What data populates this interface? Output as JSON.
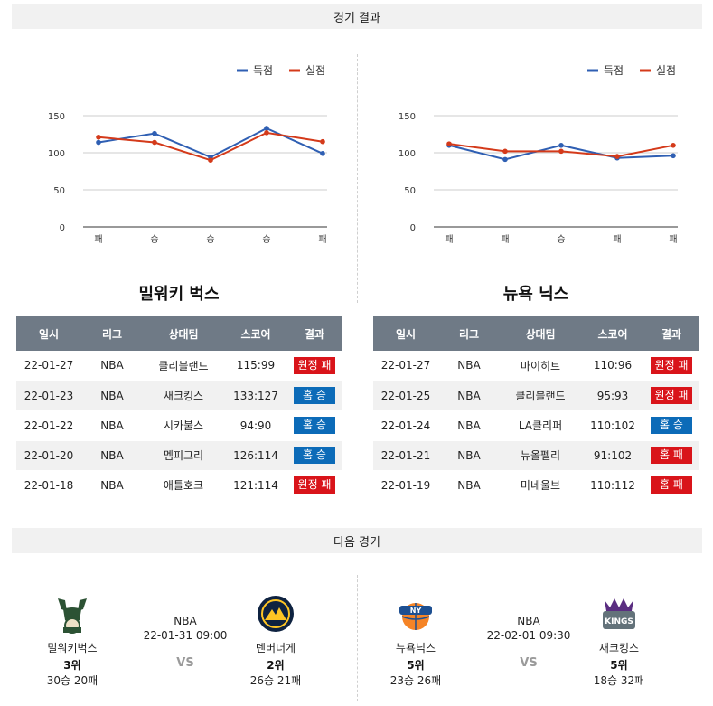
{
  "sections": {
    "results_title": "경기 결과",
    "next_title": "다음 경기"
  },
  "colors": {
    "scored": "#2f5fb3",
    "allowed": "#d43a1a",
    "loss": "#d9141a",
    "win": "#0c6bb8",
    "header": "#6f7a86"
  },
  "table_headers": [
    "일시",
    "리그",
    "상대팀",
    "스코어",
    "결과"
  ],
  "teams": [
    {
      "name": "밀워키 벅스",
      "games": [
        {
          "date": "22-01-27",
          "league": "NBA",
          "opponent": "클리블랜드",
          "score": "115:99",
          "result": "원정 패",
          "kind": "loss"
        },
        {
          "date": "22-01-23",
          "league": "NBA",
          "opponent": "새크킹스",
          "score": "133:127",
          "result": "홈 승",
          "kind": "win"
        },
        {
          "date": "22-01-22",
          "league": "NBA",
          "opponent": "시카불스",
          "score": "94:90",
          "result": "홈 승",
          "kind": "win"
        },
        {
          "date": "22-01-20",
          "league": "NBA",
          "opponent": "멤피그리",
          "score": "126:114",
          "result": "홈 승",
          "kind": "win"
        },
        {
          "date": "22-01-18",
          "league": "NBA",
          "opponent": "애틀호크",
          "score": "121:114",
          "result": "원정 패",
          "kind": "loss"
        }
      ]
    },
    {
      "name": "뉴욕 닉스",
      "games": [
        {
          "date": "22-01-27",
          "league": "NBA",
          "opponent": "마이히트",
          "score": "110:96",
          "result": "원정 패",
          "kind": "loss"
        },
        {
          "date": "22-01-25",
          "league": "NBA",
          "opponent": "클리블랜드",
          "score": "95:93",
          "result": "원정 패",
          "kind": "loss"
        },
        {
          "date": "22-01-24",
          "league": "NBA",
          "opponent": "LA클리퍼",
          "score": "110:102",
          "result": "홈 승",
          "kind": "win"
        },
        {
          "date": "22-01-21",
          "league": "NBA",
          "opponent": "뉴올펠리",
          "score": "91:102",
          "result": "홈 패",
          "kind": "loss"
        },
        {
          "date": "22-01-19",
          "league": "NBA",
          "opponent": "미네울브",
          "score": "110:112",
          "result": "홈 패",
          "kind": "loss"
        }
      ]
    }
  ],
  "chart_data": [
    {
      "type": "line",
      "categories": [
        "패",
        "승",
        "승",
        "승",
        "패"
      ],
      "ylim": [
        0,
        150
      ],
      "yticks": [
        0,
        50,
        100,
        150
      ],
      "grid": true,
      "legend_position": "top-right",
      "series": [
        {
          "name": "득점",
          "values": [
            114,
            126,
            94,
            133,
            99
          ]
        },
        {
          "name": "실점",
          "values": [
            121,
            114,
            90,
            127,
            115
          ]
        }
      ]
    },
    {
      "type": "line",
      "categories": [
        "패",
        "패",
        "승",
        "패",
        "패"
      ],
      "ylim": [
        0,
        150
      ],
      "yticks": [
        0,
        50,
        100,
        150
      ],
      "grid": true,
      "legend_position": "top-right",
      "series": [
        {
          "name": "득점",
          "values": [
            110,
            91,
            110,
            93,
            96
          ]
        },
        {
          "name": "실점",
          "values": [
            112,
            102,
            102,
            95,
            110
          ]
        }
      ]
    }
  ],
  "next_games": [
    {
      "league": "NBA",
      "datetime": "22-01-31 09:00",
      "vs": "VS",
      "home": {
        "name": "밀워키벅스",
        "rank": "3위",
        "record": "30승 20패",
        "logo": "bucks-logo"
      },
      "away": {
        "name": "덴버너게",
        "rank": "2위",
        "record": "26승 21패",
        "logo": "nuggets-logo"
      }
    },
    {
      "league": "NBA",
      "datetime": "22-02-01 09:30",
      "vs": "VS",
      "home": {
        "name": "뉴욕닉스",
        "rank": "5위",
        "record": "23승 26패",
        "logo": "knicks-logo"
      },
      "away": {
        "name": "새크킹스",
        "rank": "5위",
        "record": "18승 32패",
        "logo": "kings-logo"
      }
    }
  ]
}
